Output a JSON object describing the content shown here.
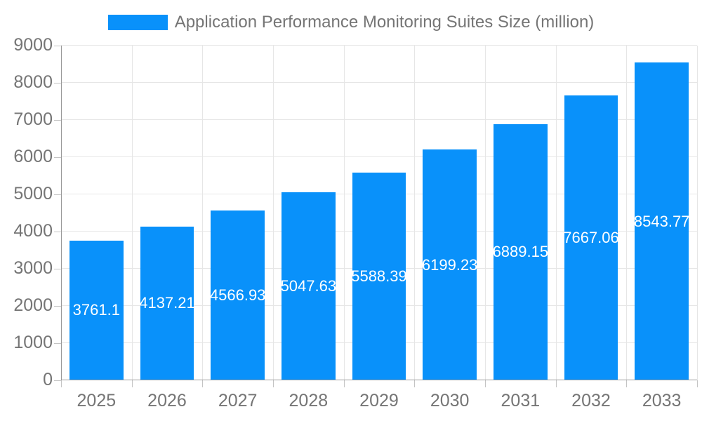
{
  "legend": {
    "label": "Application Performance Monitoring Suites Size (million)"
  },
  "colors": {
    "bar": "#0991fa",
    "grid": "#e6e6e6",
    "axis": "#999999",
    "tick": "#c4c4c4",
    "text": "#757575",
    "value_label": "#ffffff",
    "background": "#ffffff"
  },
  "chart_data": {
    "type": "bar",
    "title": "Application Performance Monitoring Suites Size (million)",
    "legend_position": "top",
    "grid": true,
    "categories": [
      "2025",
      "2026",
      "2027",
      "2028",
      "2029",
      "2030",
      "2031",
      "2032",
      "2033"
    ],
    "values": [
      3761.1,
      4137.21,
      4566.93,
      5047.63,
      5588.39,
      6199.23,
      6889.15,
      7667.06,
      8543.77
    ],
    "value_labels": [
      "3761.1",
      "4137.21",
      "4566.93",
      "5047.63",
      "5588.39",
      "6199.23",
      "6889.15",
      "7667.06",
      "8543.77"
    ],
    "xlabel": "",
    "ylabel": "",
    "ylim": [
      0,
      9000
    ],
    "y_ticks": [
      0,
      1000,
      2000,
      3000,
      4000,
      5000,
      6000,
      7000,
      8000,
      9000
    ]
  }
}
